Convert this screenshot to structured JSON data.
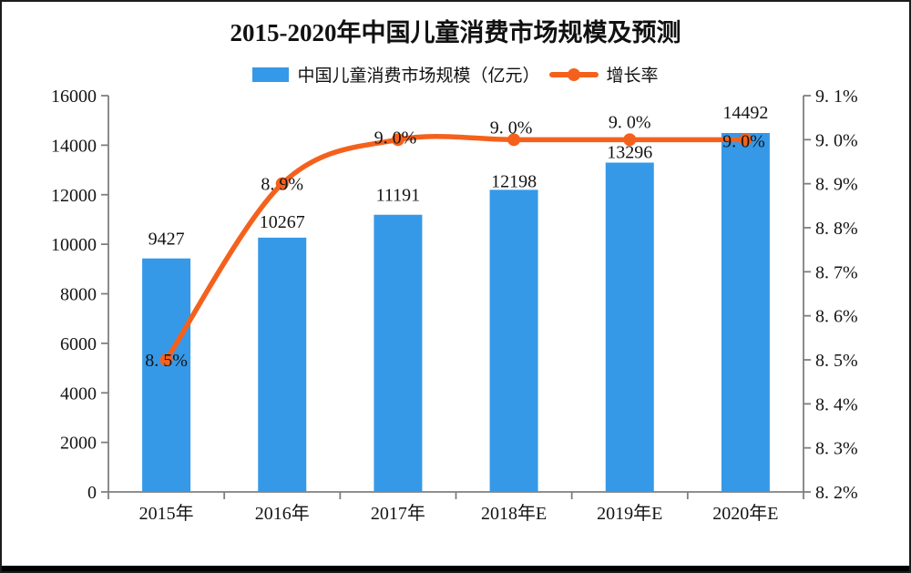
{
  "chart_data": {
    "type": "bar+line",
    "title": "2015-2020年中国儿童消费市场规模及预测",
    "categories": [
      "2015年",
      "2016年",
      "2017年",
      "2018年E",
      "2019年E",
      "2020年E"
    ],
    "series": [
      {
        "name": "中国儿童消费市场规模（亿元）",
        "type": "bar",
        "axis": "left",
        "values": [
          9427,
          10267,
          11191,
          12198,
          13296,
          14492
        ],
        "data_labels": [
          "9427",
          "10267",
          "11191",
          "12198",
          "13296",
          "14492"
        ]
      },
      {
        "name": "增长率",
        "type": "line",
        "axis": "right",
        "values": [
          8.5,
          8.9,
          9.0,
          9.0,
          9.0,
          9.0
        ],
        "data_labels": [
          "8. 5%",
          "8. 9%",
          "9. 0%",
          "9. 0%",
          "9. 0%",
          "9. 0%"
        ]
      }
    ],
    "left_axis": {
      "min": 0,
      "max": 16000,
      "step": 2000,
      "tick_labels": [
        "0",
        "2000",
        "4000",
        "6000",
        "8000",
        "10000",
        "12000",
        "14000",
        "16000"
      ]
    },
    "right_axis": {
      "min": 8.2,
      "max": 9.1,
      "step": 0.1,
      "tick_labels": [
        "8. 2%",
        "8. 3%",
        "8. 4%",
        "8. 5%",
        "8. 6%",
        "8. 7%",
        "8. 8%",
        "8. 9%",
        "9. 0%",
        "9. 1%"
      ]
    },
    "legend_position": "top",
    "grid": false,
    "smooth_line": true,
    "label_layout": {
      "bar_label_dy": [
        -15,
        -11,
        -15,
        -3,
        -5,
        -16
      ],
      "line_label_dx": [
        0,
        0,
        -3,
        -3,
        0,
        -2
      ],
      "line_label_dy": [
        7,
        7,
        4,
        -7,
        -13,
        8
      ]
    }
  },
  "colors": {
    "bar": "#3599e8",
    "line": "#f4611d",
    "axis": "#7f7f7f",
    "text": "#141414",
    "frame_border": "#1c1c1c",
    "bottom_bar": "#000000",
    "background": "#ffffff"
  }
}
